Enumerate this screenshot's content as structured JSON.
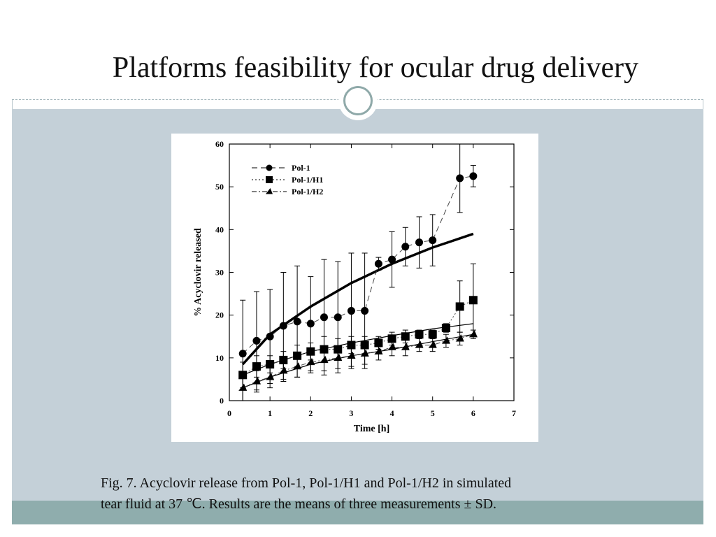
{
  "slide": {
    "title": "Platforms feasibility for ocular drug delivery",
    "caption_line1": "Fig. 7. Acyclovir release from Pol-1, Pol-1/H1 and Pol-1/H2 in simulated",
    "caption_line2": "tear fluid at 37 ℃. Results are the means of three measurements ± SD.",
    "colors": {
      "content_background": "#c4d0d8",
      "bottom_band": "#8fadad",
      "ornament_ring": "#8fa9a9"
    },
    "ornament_icon": "circle-ornament-icon"
  },
  "chart_data": {
    "type": "scatter",
    "xlabel": "Time [h]",
    "ylabel": "% Acyclovir released",
    "xlim": [
      0,
      7
    ],
    "ylim": [
      0,
      60
    ],
    "x_ticks": [
      "0",
      "1",
      "2",
      "3",
      "4",
      "5",
      "6",
      "7"
    ],
    "y_ticks": [
      "0",
      "10",
      "20",
      "30",
      "40",
      "50",
      "60"
    ],
    "legend_position": "top-left",
    "grid": false,
    "series": [
      {
        "name": "Pol-1",
        "marker": "circle",
        "line": "dashed",
        "x": [
          0.33,
          0.67,
          1.0,
          1.33,
          1.67,
          2.0,
          2.33,
          2.67,
          3.0,
          3.33,
          3.67,
          4.0,
          4.33,
          4.67,
          5.0,
          5.67,
          6.0
        ],
        "y": [
          11,
          14,
          15,
          17.5,
          18.5,
          18,
          19.5,
          19.5,
          21,
          21,
          32,
          33,
          36,
          37,
          37.5,
          52,
          52.5
        ],
        "err": [
          12.5,
          11.5,
          11,
          12.5,
          13,
          11,
          13.5,
          13,
          13.5,
          13.5,
          1.5,
          6.5,
          4.5,
          6,
          6,
          8,
          2.5
        ]
      },
      {
        "name": "Pol-1/H1",
        "marker": "square",
        "line": "dotted",
        "x": [
          0.33,
          0.67,
          1.0,
          1.33,
          1.67,
          2.0,
          2.33,
          2.67,
          3.0,
          3.33,
          3.67,
          4.0,
          4.33,
          4.67,
          5.0,
          5.33,
          5.67,
          6.0
        ],
        "y": [
          6,
          8,
          8.5,
          9.5,
          10.5,
          11.5,
          12,
          12,
          13,
          13,
          13.5,
          14.5,
          15,
          15.5,
          15.5,
          17,
          22,
          23.5
        ],
        "err": [
          3,
          2.5,
          2,
          2,
          2.5,
          2,
          3,
          2.5,
          2,
          2,
          1.5,
          1.5,
          1.5,
          1,
          1,
          1,
          6,
          8.5
        ]
      },
      {
        "name": "Pol-1/H2",
        "marker": "triangle",
        "line": "dash-dot",
        "x": [
          0.33,
          0.67,
          1.0,
          1.33,
          1.67,
          2.0,
          2.33,
          2.67,
          3.0,
          3.33,
          3.67,
          4.0,
          4.33,
          4.67,
          5.0,
          5.33,
          5.67,
          6.0
        ],
        "y": [
          3,
          4.5,
          5.5,
          7,
          8,
          9,
          9.5,
          10,
          10.5,
          11,
          11.5,
          12.5,
          12.5,
          13,
          13,
          14,
          14.5,
          15.5
        ],
        "err": [
          3,
          2.5,
          2.5,
          2.5,
          2.5,
          2.5,
          2.5,
          2.5,
          2.5,
          2.5,
          2,
          2,
          2,
          1.5,
          1.5,
          1.5,
          1.5,
          1
        ]
      }
    ],
    "fit_curves": [
      {
        "series": "Pol-1",
        "style": "thick-solid",
        "x": [
          0.33,
          1,
          2,
          3,
          4,
          5,
          6
        ],
        "y": [
          8.5,
          15.5,
          22,
          27.5,
          32,
          35.8,
          39
        ]
      },
      {
        "series": "Pol-1/H1",
        "style": "thin-solid",
        "x": [
          0.33,
          1,
          2,
          3,
          4,
          5,
          6
        ],
        "y": [
          6,
          8.5,
          11.5,
          13.5,
          15.2,
          16.8,
          18
        ]
      },
      {
        "series": "Pol-1/H2",
        "style": "thin-solid",
        "x": [
          0.33,
          1,
          2,
          3,
          4,
          5,
          6
        ],
        "y": [
          3,
          5.5,
          8.5,
          10.5,
          12,
          13.8,
          15.5
        ]
      }
    ]
  }
}
